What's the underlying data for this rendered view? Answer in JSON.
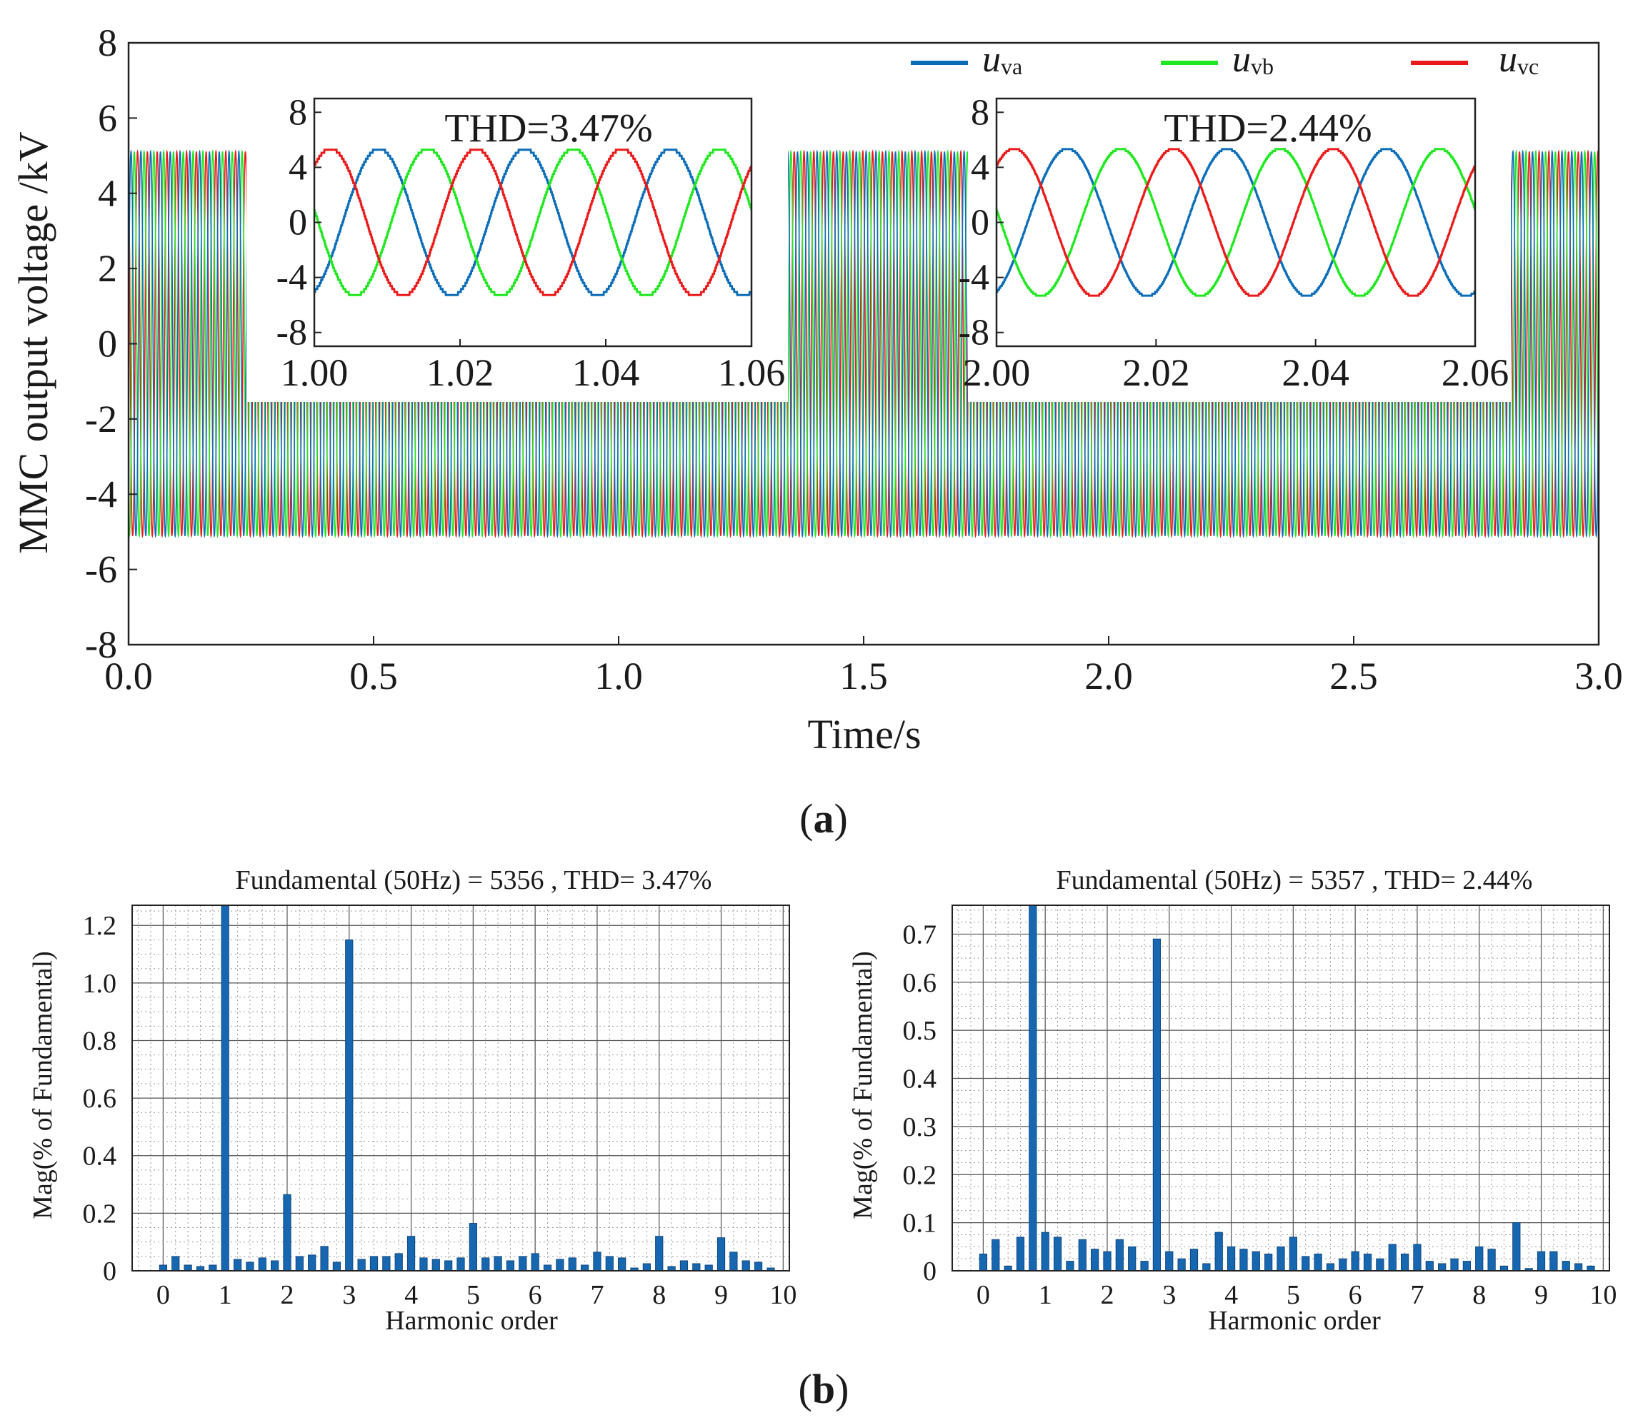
{
  "colors": {
    "uva": "#0b6db8",
    "uvb": "#1ee81e",
    "uvc": "#ea1a1a",
    "bar": "#1666b0",
    "axis": "#222222",
    "grid_major": "#555555",
    "grid_minor": "#9a9a9a"
  },
  "panel_a_label": {
    "open": "(",
    "letter": "a",
    "close": ")"
  },
  "panel_b_label": {
    "open": "(",
    "letter": "b",
    "close": ")"
  },
  "chart_data": [
    {
      "type": "line",
      "id": "main-voltage",
      "title": "",
      "xlabel": "Time/s",
      "ylabel": "MMC output voltage /kV",
      "xlim": [
        0,
        3.0
      ],
      "ylim": [
        -8,
        8
      ],
      "x_ticks": [
        "0.0",
        "0.5",
        "1.0",
        "1.5",
        "2.0",
        "2.5",
        "3.0"
      ],
      "y_ticks": [
        "-8",
        "-6",
        "-4",
        "-2",
        "0",
        "2",
        "4",
        "6",
        "8"
      ],
      "grid": false,
      "legend_position": "top-right",
      "series": [
        {
          "name": "u",
          "subscript": "va",
          "color_key": "uva",
          "amplitude_kv": 5.36,
          "frequency_hz": 50,
          "phase_deg": 0
        },
        {
          "name": "u",
          "subscript": "vb",
          "color_key": "uvb",
          "amplitude_kv": 5.36,
          "frequency_hz": 50,
          "phase_deg": -120
        },
        {
          "name": "u",
          "subscript": "vc",
          "color_key": "uvc",
          "amplitude_kv": 5.36,
          "frequency_hz": 50,
          "phase_deg": 120
        }
      ]
    },
    {
      "type": "line",
      "id": "inset-1",
      "annotation": "THD=3.47%",
      "xlim": [
        1.0,
        1.06
      ],
      "ylim": [
        -9,
        9
      ],
      "x_ticks": [
        "1.00",
        "1.02",
        "1.04",
        "1.06"
      ],
      "y_ticks": [
        "-8",
        "-4",
        "0",
        "4",
        "8"
      ],
      "amplitude_kv": 5.36,
      "frequency_hz": 50
    },
    {
      "type": "line",
      "id": "inset-2",
      "annotation": "THD=2.44%",
      "xlim": [
        2.0,
        2.06
      ],
      "ylim": [
        -9,
        9
      ],
      "x_ticks": [
        "2.00",
        "2.02",
        "2.04",
        "2.06"
      ],
      "y_ticks": [
        "-8",
        "-4",
        "0",
        "4",
        "8"
      ],
      "amplitude_kv": 5.36,
      "frequency_hz": 50
    },
    {
      "type": "bar",
      "id": "spectrum-1",
      "title": "Fundamental (50Hz) = 5356 , THD= 3.47%",
      "xlabel": "Harmonic order",
      "ylabel": "Mag(% of Fundamental)",
      "xlim": [
        -0.5,
        10.1
      ],
      "ylim": [
        0,
        1.27
      ],
      "x_ticks": [
        "0",
        "1",
        "2",
        "3",
        "4",
        "5",
        "6",
        "7",
        "8",
        "9",
        "10"
      ],
      "y_ticks": [
        "0",
        "0.2",
        "0.4",
        "0.6",
        "0.8",
        "1.0",
        "1.2"
      ],
      "grid": true,
      "x": [
        0.0,
        0.2,
        0.4,
        0.6,
        0.8,
        1.0,
        1.2,
        1.4,
        1.6,
        1.8,
        2.0,
        2.2,
        2.4,
        2.6,
        2.8,
        3.0,
        3.2,
        3.4,
        3.6,
        3.8,
        4.0,
        4.2,
        4.4,
        4.6,
        4.8,
        5.0,
        5.2,
        5.4,
        5.6,
        5.8,
        6.0,
        6.2,
        6.4,
        6.6,
        6.8,
        7.0,
        7.2,
        7.4,
        7.6,
        7.8,
        8.0,
        8.2,
        8.4,
        8.6,
        8.8,
        9.0,
        9.2,
        9.4,
        9.6,
        9.8
      ],
      "values": [
        0.02,
        0.05,
        0.02,
        0.015,
        0.02,
        1.28,
        0.04,
        0.03,
        0.045,
        0.035,
        0.265,
        0.05,
        0.055,
        0.085,
        0.03,
        1.15,
        0.04,
        0.05,
        0.05,
        0.06,
        0.12,
        0.045,
        0.04,
        0.035,
        0.045,
        0.165,
        0.045,
        0.05,
        0.035,
        0.05,
        0.06,
        0.02,
        0.04,
        0.045,
        0.02,
        0.065,
        0.05,
        0.045,
        0.01,
        0.025,
        0.12,
        0.015,
        0.035,
        0.025,
        0.02,
        0.115,
        0.065,
        0.035,
        0.03,
        0.01
      ]
    },
    {
      "type": "bar",
      "id": "spectrum-2",
      "title": "Fundamental (50Hz) = 5357 , THD= 2.44%",
      "xlabel": "Harmonic order",
      "ylabel": "Mag(% of Fundamental)",
      "xlim": [
        -0.5,
        10.1
      ],
      "ylim": [
        0,
        0.76
      ],
      "x_ticks": [
        "0",
        "1",
        "2",
        "3",
        "4",
        "5",
        "6",
        "7",
        "8",
        "9",
        "10"
      ],
      "y_ticks": [
        "0",
        "0.1",
        "0.2",
        "0.3",
        "0.4",
        "0.5",
        "0.6",
        "0.7"
      ],
      "grid": true,
      "x": [
        0.0,
        0.2,
        0.4,
        0.6,
        0.8,
        1.0,
        1.2,
        1.4,
        1.6,
        1.8,
        2.0,
        2.2,
        2.4,
        2.6,
        2.8,
        3.0,
        3.2,
        3.4,
        3.6,
        3.8,
        4.0,
        4.2,
        4.4,
        4.6,
        4.8,
        5.0,
        5.2,
        5.4,
        5.6,
        5.8,
        6.0,
        6.2,
        6.4,
        6.6,
        6.8,
        7.0,
        7.2,
        7.4,
        7.6,
        7.8,
        8.0,
        8.2,
        8.4,
        8.6,
        8.8,
        9.0,
        9.2,
        9.4,
        9.6,
        9.8
      ],
      "values": [
        0.035,
        0.065,
        0.01,
        0.07,
        0.77,
        0.08,
        0.07,
        0.02,
        0.065,
        0.045,
        0.04,
        0.065,
        0.05,
        0.02,
        0.69,
        0.04,
        0.025,
        0.045,
        0.015,
        0.08,
        0.05,
        0.045,
        0.04,
        0.035,
        0.05,
        0.07,
        0.03,
        0.035,
        0.015,
        0.025,
        0.04,
        0.035,
        0.025,
        0.055,
        0.035,
        0.055,
        0.02,
        0.015,
        0.025,
        0.02,
        0.05,
        0.045,
        0.01,
        0.1,
        0.005,
        0.04,
        0.04,
        0.02,
        0.015,
        0.01
      ]
    }
  ]
}
